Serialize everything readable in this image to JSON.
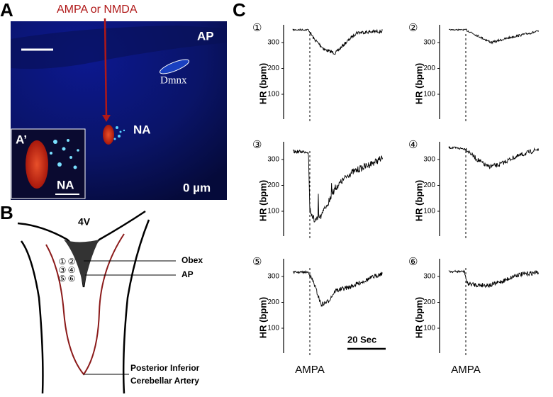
{
  "panel_labels": [
    "A",
    "B",
    "C"
  ],
  "panel_a": {
    "injection_label": "AMPA or NMDA",
    "ap": "AP",
    "dmnx": "Dmnx",
    "na": "NA",
    "inset_label": "A’",
    "inset_na": "NA",
    "depth": "0 µm"
  },
  "panel_b": {
    "ventricle": "4V",
    "obex": "Obex",
    "ap": "AP",
    "sites": [
      "①",
      "②",
      "③",
      "④",
      "⑤",
      "⑥"
    ],
    "artery": [
      "Posterior Inferior",
      "Cerebellar Artery"
    ]
  },
  "panel_c": {
    "plots": [
      {
        "number": "①",
        "y_label": "HR (bpm)",
        "yticks": [
          300,
          200,
          100
        ]
      },
      {
        "number": "②",
        "y_label": "HR (bpm)",
        "yticks": [
          300,
          200,
          100
        ]
      },
      {
        "number": "③",
        "y_label": "HR (bpm)",
        "yticks": [
          300,
          200,
          100
        ]
      },
      {
        "number": "④",
        "y_label": "HR (bpm)",
        "yticks": [
          300,
          200,
          100
        ]
      },
      {
        "number": "⑤",
        "y_label": "HR (bpm)",
        "yticks": [
          300,
          200,
          100
        ]
      },
      {
        "number": "⑥",
        "y_label": "HR (bpm)",
        "yticks": [
          300,
          200,
          100
        ]
      }
    ],
    "scale_bar": "20 Sec",
    "stimulus": [
      "AMPA",
      "AMPA"
    ]
  }
}
